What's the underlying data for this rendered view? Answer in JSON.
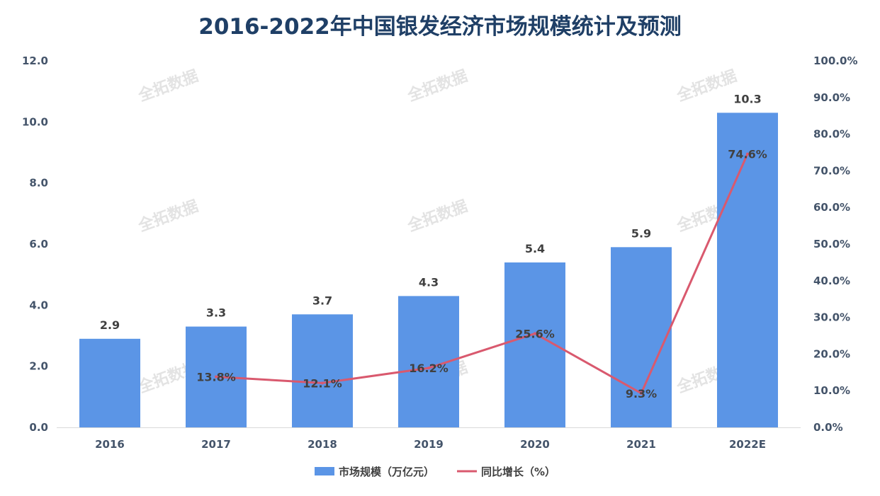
{
  "chart_data": {
    "type": "bar",
    "title": "2016-2022年中国银发经济市场规模统计及预测",
    "categories": [
      "2016",
      "2017",
      "2018",
      "2019",
      "2020",
      "2021",
      "2022E"
    ],
    "series": [
      {
        "name": "市场规模（万亿元）",
        "type": "bar",
        "axis": "left",
        "values": [
          2.9,
          3.3,
          3.7,
          4.3,
          5.4,
          5.9,
          10.3
        ],
        "labels": [
          "2.9",
          "3.3",
          "3.7",
          "4.3",
          "5.4",
          "5.9",
          "10.3"
        ],
        "color": "#5b95e6"
      },
      {
        "name": "同比增长（%）",
        "type": "line",
        "axis": "right",
        "values": [
          null,
          13.8,
          12.1,
          16.2,
          25.6,
          9.3,
          74.6
        ],
        "labels": [
          "",
          "13.8%",
          "12.1%",
          "16.2%",
          "25.6%",
          "9.3%",
          "74.6%"
        ],
        "color": "#d9596e"
      }
    ],
    "y_left": {
      "ylim": [
        0,
        12
      ],
      "ticks": [
        "0.0",
        "2.0",
        "4.0",
        "6.0",
        "8.0",
        "10.0",
        "12.0"
      ]
    },
    "y_right": {
      "ylim": [
        0,
        100
      ],
      "ticks": [
        "0.0%",
        "10.0%",
        "20.0%",
        "30.0%",
        "40.0%",
        "50.0%",
        "60.0%",
        "70.0%",
        "80.0%",
        "90.0%",
        "100.0%"
      ]
    },
    "legend_position": "bottom-center",
    "grid": false,
    "watermark": "全拓数据"
  }
}
